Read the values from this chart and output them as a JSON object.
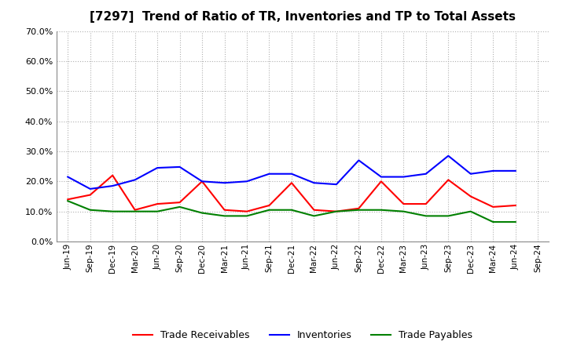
{
  "title": "[7297]  Trend of Ratio of TR, Inventories and TP to Total Assets",
  "x_labels": [
    "Jun-19",
    "Sep-19",
    "Dec-19",
    "Mar-20",
    "Jun-20",
    "Sep-20",
    "Dec-20",
    "Mar-21",
    "Jun-21",
    "Sep-21",
    "Dec-21",
    "Mar-22",
    "Jun-22",
    "Sep-22",
    "Dec-22",
    "Mar-23",
    "Jun-23",
    "Sep-23",
    "Dec-23",
    "Mar-24",
    "Jun-24",
    "Sep-24"
  ],
  "trade_receivables": [
    0.14,
    0.155,
    0.22,
    0.105,
    0.125,
    0.13,
    0.2,
    0.105,
    0.1,
    0.12,
    0.195,
    0.105,
    0.1,
    0.11,
    0.2,
    0.125,
    0.125,
    0.205,
    0.15,
    0.115,
    0.12,
    null
  ],
  "inventories": [
    0.215,
    0.175,
    0.185,
    0.205,
    0.245,
    0.248,
    0.2,
    0.195,
    0.2,
    0.225,
    0.225,
    0.195,
    0.19,
    0.27,
    0.215,
    0.215,
    0.225,
    0.285,
    0.225,
    0.235,
    0.235,
    null
  ],
  "trade_payables": [
    0.135,
    0.105,
    0.1,
    0.1,
    0.1,
    0.115,
    0.095,
    0.085,
    0.085,
    0.105,
    0.105,
    0.085,
    0.1,
    0.105,
    0.105,
    0.1,
    0.085,
    0.085,
    0.1,
    0.065,
    0.065,
    null
  ],
  "tr_color": "#ff0000",
  "inv_color": "#0000ff",
  "tp_color": "#008000",
  "ylim": [
    0.0,
    0.7
  ],
  "yticks": [
    0.0,
    0.1,
    0.2,
    0.3,
    0.4,
    0.5,
    0.6,
    0.7
  ],
  "background_color": "#ffffff",
  "grid_color": "#b0b0b0"
}
